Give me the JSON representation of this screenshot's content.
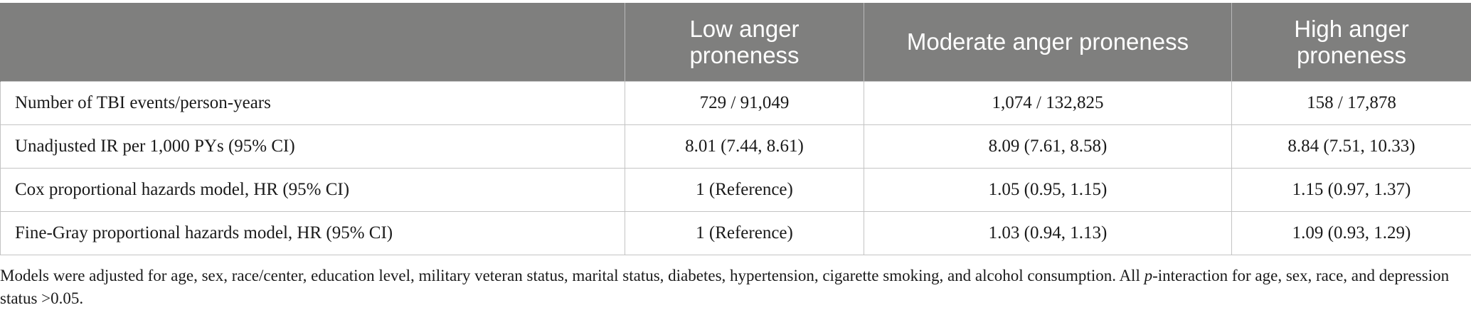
{
  "table": {
    "headers": [
      "",
      "Low anger proneness",
      "Moderate anger proneness",
      "High anger proneness"
    ],
    "rows": [
      [
        "Number of TBI events/person-years",
        "729 / 91,049",
        "1,074 / 132,825",
        "158 / 17,878"
      ],
      [
        "Unadjusted IR per 1,000 PYs (95% CI)",
        "8.01 (7.44, 8.61)",
        "8.09 (7.61, 8.58)",
        "8.84 (7.51, 10.33)"
      ],
      [
        "Cox proportional hazards model, HR (95% CI)",
        "1 (Reference)",
        "1.05 (0.95, 1.15)",
        "1.15 (0.97, 1.37)"
      ],
      [
        "Fine-Gray proportional hazards model, HR (95% CI)",
        "1 (Reference)",
        "1.03 (0.94, 1.13)",
        "1.09 (0.93, 1.29)"
      ]
    ]
  },
  "footnote": {
    "part1": "Models were adjusted for age, sex, race/center, education level, military veteran status, marital status, diabetes, hypertension, cigarette smoking, and alcohol consumption. All ",
    "italic": "p",
    "part2": "-interaction for age, sex, race, and depression status >0.05."
  },
  "colors": {
    "header_bg": "#7f7f7e",
    "header_text": "#ffffff",
    "border": "#c4c4c4"
  }
}
